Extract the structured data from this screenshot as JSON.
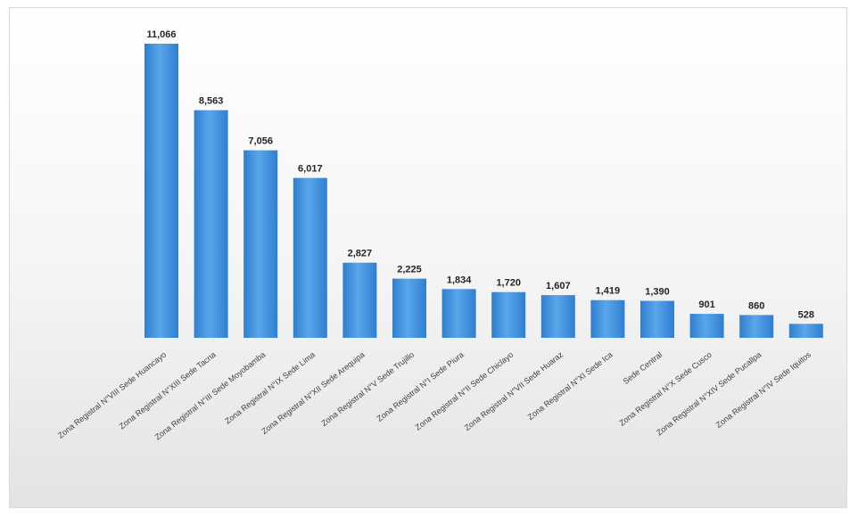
{
  "chart_data": {
    "type": "bar",
    "title": "",
    "xlabel": "",
    "ylabel": "",
    "ylim": [
      0,
      11500
    ],
    "grid": false,
    "legend": "none",
    "bar_color": "#2f7fd0",
    "bar_color_light": "#5aa6ea",
    "categories": [
      "Zona Registral N°VIII Sede Huancayo",
      "Zona Registral N°XIII Sede Tacna",
      "Zona Registral N°III Sede Moyobamba",
      "Zona Registral N°IX Sede Lima",
      "Zona Registral N°XII Sede Arequipa",
      "Zona Registral N°V Sede Trujillo",
      "Zona Registral N°I Sede Piura",
      "Zona Registral N°II Sede Chiclayo",
      "Zona Registral N°VII Sede Huaraz",
      "Zona Registral N°XI Sede Ica",
      "Sede Central",
      "Zona Registral N°X Sede Cusco",
      "Zona Registral N°XIV Sede Pucallpa",
      "Zona Registral N°IV Sede Iquitos"
    ],
    "values": [
      11066,
      8563,
      7056,
      6017,
      2827,
      2225,
      1834,
      1720,
      1607,
      1419,
      1390,
      901,
      860,
      528
    ],
    "value_labels": [
      "11,066",
      "8,563",
      "7,056",
      "6,017",
      "2,827",
      "2,225",
      "1,834",
      "1,720",
      "1,607",
      "1,419",
      "1,390",
      "901",
      "860",
      "528"
    ]
  }
}
